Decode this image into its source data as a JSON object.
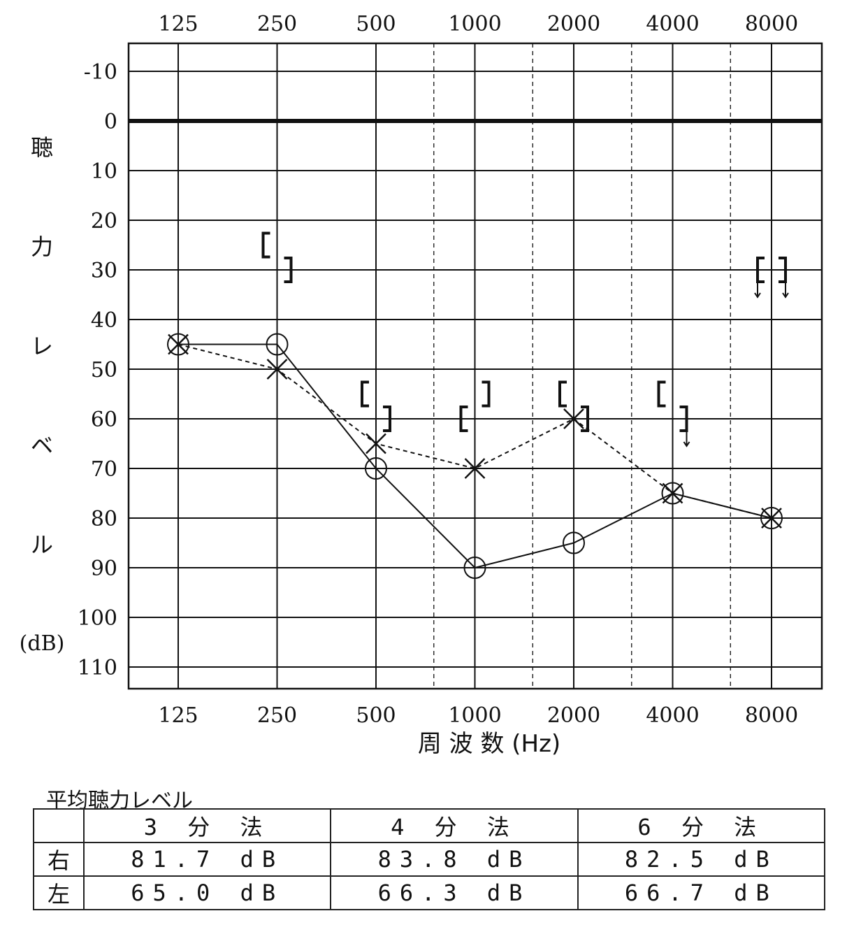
{
  "chart_data": {
    "type": "line",
    "top_tick_labels": [
      "125",
      "250",
      "500",
      "1000",
      "2000",
      "4000",
      "8000"
    ],
    "x": [
      125,
      250,
      500,
      1000,
      2000,
      4000,
      8000
    ],
    "x_scale": "log2",
    "xlabel": "周 波 数 (Hz)",
    "ylabel": "聴力レベル",
    "yunit": "(dB)",
    "y_ticks": [
      "-10",
      "0",
      "10",
      "20",
      "30",
      "40",
      "50",
      "60",
      "70",
      "80",
      "90",
      "100",
      "110"
    ],
    "ylim": [
      -15,
      115
    ],
    "y_inverted": true,
    "grid": true,
    "series": [
      {
        "marker": "circle",
        "line": "solid",
        "values": [
          45,
          45,
          70,
          90,
          85,
          75,
          80
        ]
      },
      {
        "marker": "cross",
        "line": "dashed",
        "values": [
          45,
          50,
          65,
          70,
          60,
          75,
          80
        ]
      }
    ],
    "bone_conduction": [
      {
        "marker": "[",
        "points": [
          {
            "x": 250,
            "y": 25
          },
          {
            "x": 500,
            "y": 55
          },
          {
            "x": 1000,
            "y": 60
          },
          {
            "x": 2000,
            "y": 55
          },
          {
            "x": 4000,
            "y": 55
          },
          {
            "x": 8000,
            "y": 30,
            "no_response": true
          }
        ]
      },
      {
        "marker": "]",
        "points": [
          {
            "x": 250,
            "y": 30
          },
          {
            "x": 500,
            "y": 60
          },
          {
            "x": 1000,
            "y": 55
          },
          {
            "x": 2000,
            "y": 60
          },
          {
            "x": 4000,
            "y": 60,
            "no_response": true
          },
          {
            "x": 8000,
            "y": 30,
            "no_response": true
          }
        ]
      }
    ]
  },
  "average": {
    "title": "平均聴力レベル",
    "headers": [
      "3 分 法",
      "4 分 法",
      "6 分 法"
    ],
    "rows": [
      {
        "label": "右",
        "values": [
          "81.7 dB",
          "83.8 dB",
          "82.5 dB"
        ]
      },
      {
        "label": "左",
        "values": [
          "65.0 dB",
          "66.3 dB",
          "66.7 dB"
        ]
      }
    ]
  }
}
